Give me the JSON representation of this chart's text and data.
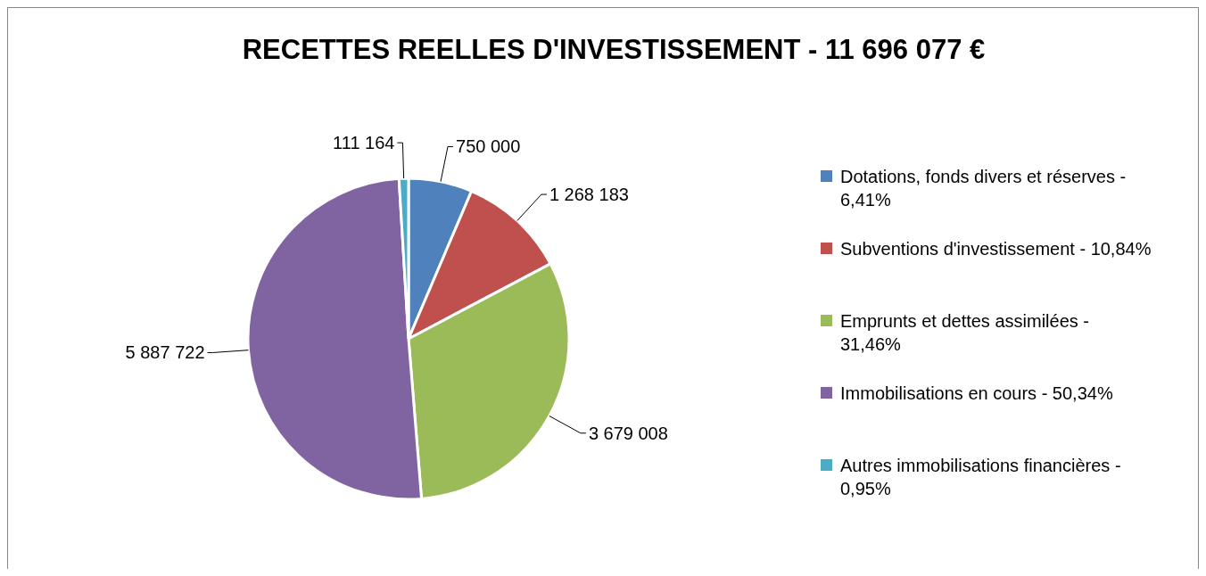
{
  "chart_data": {
    "type": "pie",
    "title": "RECETTES REELLES D'INVESTISSEMENT - 11 696 077 €",
    "categories": [
      "Dotations, fonds divers et réserves - 6,41%",
      "Subventions d'investissement - 10,84%",
      "Emprunts et dettes assimilées - 31,46%",
      "Immobilisations en cours - 50,34%",
      "Autres immobilisations financières - 0,95%"
    ],
    "values": [
      750000,
      1268183,
      3679008,
      5887722,
      111164
    ],
    "value_labels": [
      "750 000",
      "1 268 183",
      "3 679 008",
      "5 887 722",
      "111 164"
    ],
    "colors": [
      "#4f81bd",
      "#c0504d",
      "#9bbb59",
      "#8064a2",
      "#4bacc6"
    ],
    "legend": "right"
  }
}
